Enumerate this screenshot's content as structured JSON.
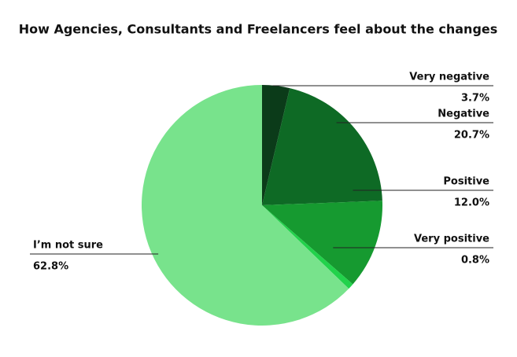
{
  "chart_data": {
    "type": "pie",
    "title": "How Agencies, Consultants and Freelancers feel about the changes",
    "categories": [
      "Very negative",
      "Negative",
      "Positive",
      "Very positive",
      "I’m not sure"
    ],
    "values": [
      3.7,
      20.7,
      12.0,
      0.8,
      62.8
    ],
    "value_labels": [
      "3.7%",
      "20.7%",
      "12.0%",
      "0.8%",
      "62.8%"
    ],
    "colors": [
      "#0b3b19",
      "#0e6a25",
      "#169a30",
      "#22d24b",
      "#78e38c"
    ]
  }
}
